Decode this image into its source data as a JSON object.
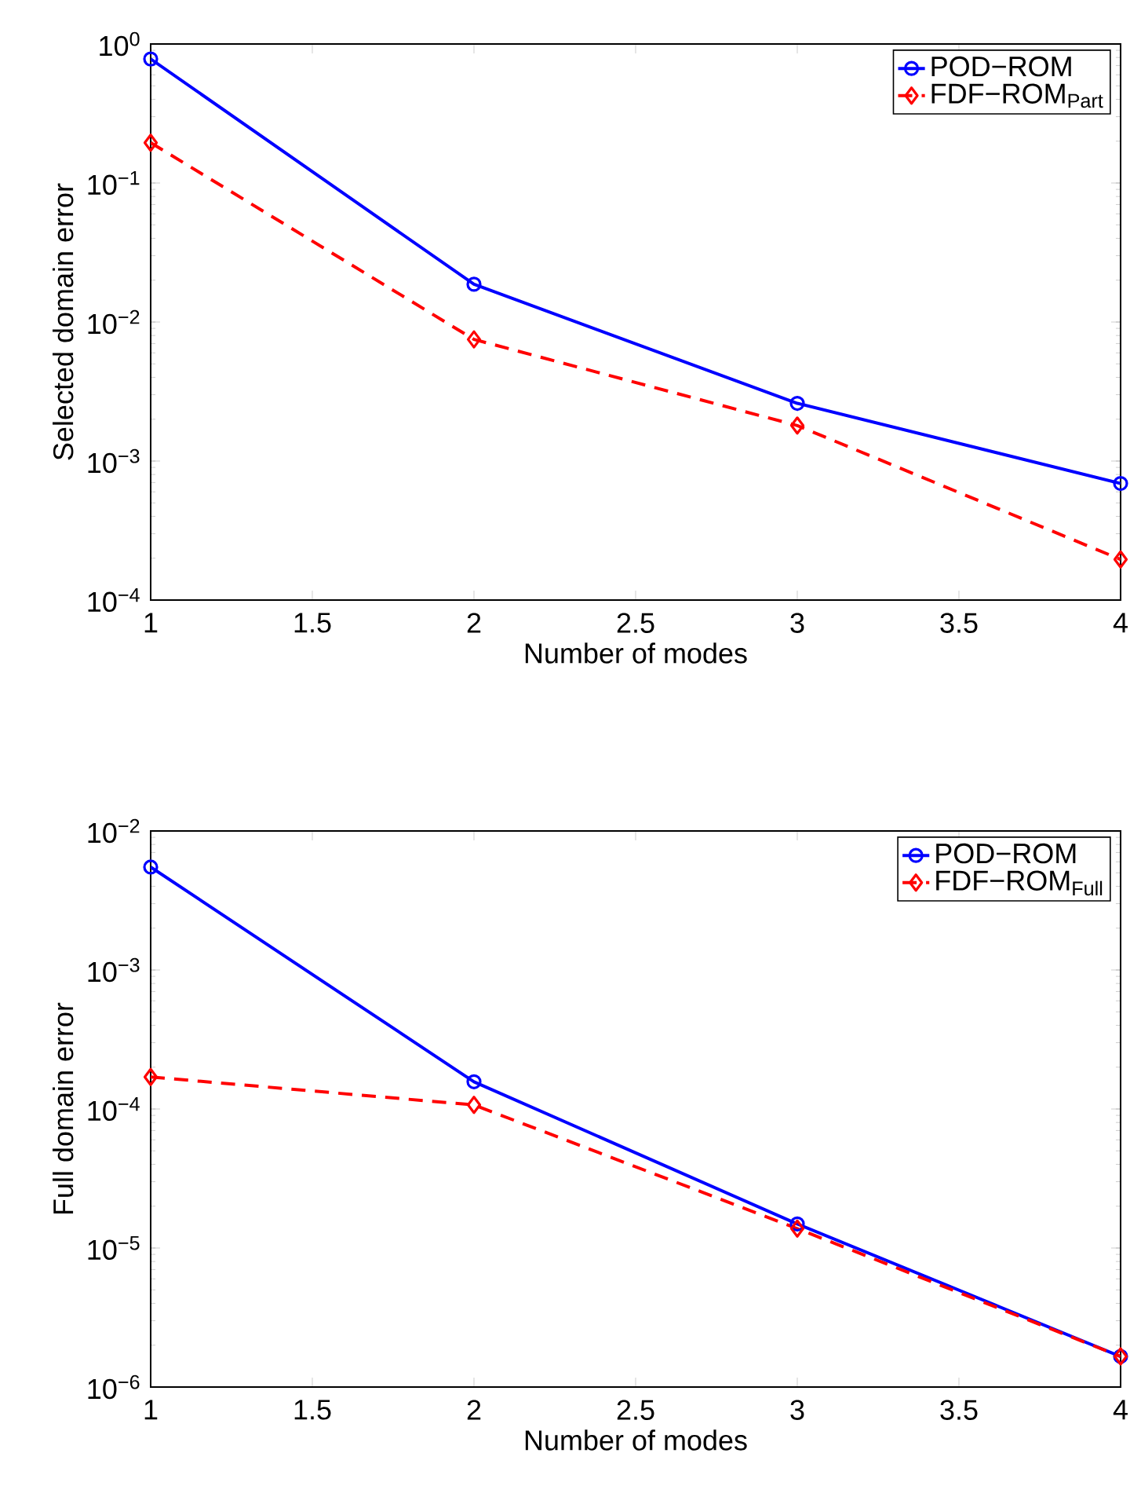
{
  "chart_data": [
    {
      "type": "line",
      "xlabel": "Number of modes",
      "ylabel": "Selected domain error",
      "log": "y",
      "legend": "top right",
      "grid": false,
      "xlim": [
        1,
        4
      ],
      "xticks": [
        1,
        1.5,
        2,
        2.5,
        3,
        3.5,
        4
      ],
      "ylim": [
        0.0001,
        1
      ],
      "yticks": [
        {
          "value": 0.0001,
          "label": "10$^{−4}$"
        },
        {
          "value": 0.001,
          "label": "10$^{−3}$"
        },
        {
          "value": 0.01,
          "label": "10$^{−2}$"
        },
        {
          "value": 0.1,
          "label": "10$^{−1}$"
        },
        {
          "value": 1,
          "label": "10$^{0}$"
        }
      ],
      "x": [
        1,
        2,
        3,
        4
      ],
      "series": [
        {
          "name": "POD−ROM",
          "color": "#0000ff",
          "marker": "circle",
          "line_style": "solid",
          "values": [
            0.78,
            0.0187,
            0.0026,
            0.00069
          ]
        },
        {
          "name": "FDF−ROM$_{Part}$",
          "color": "#ff0000",
          "marker": "diamond",
          "line_style": "dashed",
          "values": [
            0.195,
            0.0075,
            0.0018,
            0.000196
          ]
        }
      ]
    },
    {
      "type": "line",
      "xlabel": "Number of modes",
      "ylabel": "Full domain error",
      "log": "y",
      "legend": "top right",
      "grid": false,
      "xlim": [
        1,
        4
      ],
      "xticks": [
        1,
        1.5,
        2,
        2.5,
        3,
        3.5,
        4
      ],
      "ylim": [
        1e-06,
        0.01
      ],
      "yticks": [
        {
          "value": 1e-06,
          "label": "10$^{−6}$"
        },
        {
          "value": 1e-05,
          "label": "10$^{−5}$"
        },
        {
          "value": 0.0001,
          "label": "10$^{−4}$"
        },
        {
          "value": 0.001,
          "label": "10$^{−3}$"
        },
        {
          "value": 0.01,
          "label": "10$^{−2}$"
        }
      ],
      "x": [
        1,
        2,
        3,
        4
      ],
      "series": [
        {
          "name": "POD−ROM",
          "color": "#0000ff",
          "marker": "circle",
          "line_style": "solid",
          "values": [
            0.0055,
            0.000157,
            1.49e-05,
            1.66e-06
          ]
        },
        {
          "name": "FDF−ROM$_{Full}$",
          "color": "#ff0000",
          "marker": "diamond",
          "line_style": "dashed",
          "values": [
            0.00017,
            0.000107,
            1.38e-05,
            1.66e-06
          ]
        }
      ]
    }
  ]
}
